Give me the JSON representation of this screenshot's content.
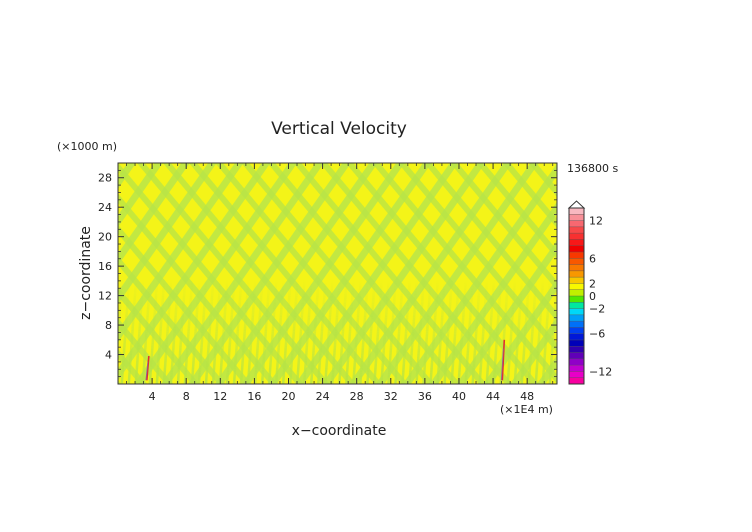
{
  "chart_data": {
    "type": "heatmap",
    "title": "Vertical Velocity",
    "xlabel": "x−coordinate",
    "ylabel": "z−coordinate",
    "x_unit": "(×1E4 m)",
    "y_unit": "(×1000 m)",
    "time_label": "136800 s",
    "xlim": [
      0,
      51.5
    ],
    "ylim": [
      0,
      30
    ],
    "xticks": [
      4,
      8,
      12,
      16,
      20,
      24,
      28,
      32,
      36,
      40,
      44,
      48
    ],
    "yticks": [
      4,
      8,
      12,
      16,
      20,
      24,
      28
    ],
    "colorbar": {
      "min": -14,
      "max": 14,
      "tick_labels": [
        "12",
        "6",
        "2",
        "0",
        "−2",
        "−6",
        "−12"
      ],
      "tick_values": [
        12,
        6,
        2,
        0,
        -2,
        -6,
        -12
      ],
      "extend": "max",
      "levels": [
        {
          "value": 13,
          "color": "#f8b8c0"
        },
        {
          "value": 12,
          "color": "#f89098"
        },
        {
          "value": 11,
          "color": "#f86870"
        },
        {
          "value": 10,
          "color": "#f84848"
        },
        {
          "value": 9,
          "color": "#f83030"
        },
        {
          "value": 8,
          "color": "#f81818"
        },
        {
          "value": 7,
          "color": "#f00000"
        },
        {
          "value": 6,
          "color": "#f83800"
        },
        {
          "value": 5,
          "color": "#f85800"
        },
        {
          "value": 4,
          "color": "#f87800"
        },
        {
          "value": 3,
          "color": "#f89800"
        },
        {
          "value": 2,
          "color": "#f8c800"
        },
        {
          "value": 1,
          "color": "#f8f800"
        },
        {
          "value": 0,
          "color": "#c0f000"
        },
        {
          "value": -1,
          "color": "#50e800"
        },
        {
          "value": -2,
          "color": "#00e8a0"
        },
        {
          "value": -3,
          "color": "#00d8f8"
        },
        {
          "value": -4,
          "color": "#00a0f8"
        },
        {
          "value": -5,
          "color": "#0070f8"
        },
        {
          "value": -6,
          "color": "#0040f0"
        },
        {
          "value": -7,
          "color": "#0018d8"
        },
        {
          "value": -8,
          "color": "#0000b8"
        },
        {
          "value": -9,
          "color": "#3000b0"
        },
        {
          "value": -10,
          "color": "#6000b8"
        },
        {
          "value": -11,
          "color": "#9000c8"
        },
        {
          "value": -12,
          "color": "#c000d0"
        },
        {
          "value": -13,
          "color": "#e800c8"
        },
        {
          "value": -14,
          "color": "#f800a0"
        }
      ]
    },
    "features": [
      {
        "x": 3.5,
        "z_top": 3.8
      },
      {
        "x": 45.2,
        "z_top": 6.0
      }
    ]
  }
}
